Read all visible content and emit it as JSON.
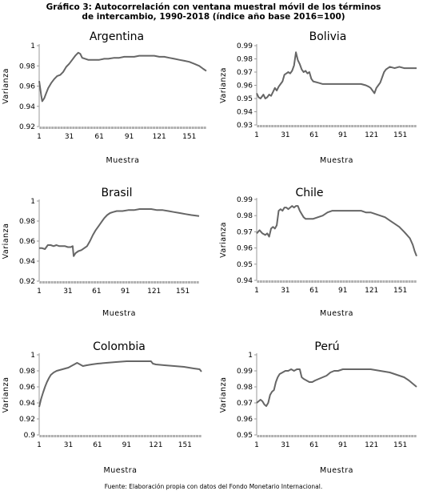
{
  "page": {
    "title_line1": "Gráfico 3: Autocorrelación con ventana muestral móvil de los términos",
    "title_line2": "de intercambio, 1990-2018 (índice año base 2016=100)",
    "source": "Fuente: Elaboración propia con datos del Fondo Monetario Internacional."
  },
  "colors": {
    "line": "#666666",
    "axis": "#999999",
    "text": "#000000"
  },
  "chart_data": [
    {
      "type": "line",
      "title": "Argentina",
      "xlabel": "Muestra",
      "ylabel": "Varianza",
      "ylim": [
        0.92,
        1.0
      ],
      "yticks": [
        "0.92",
        "0.94",
        "0.96",
        "0.98",
        "1"
      ],
      "xticks": [
        "1",
        "31",
        "61",
        "91",
        "121",
        "151"
      ],
      "x": [
        1,
        3,
        4,
        6,
        8,
        10,
        13,
        16,
        19,
        22,
        25,
        28,
        31,
        34,
        37,
        40,
        42,
        44,
        47,
        50,
        55,
        61,
        66,
        70,
        76,
        81,
        86,
        91,
        96,
        101,
        106,
        111,
        116,
        121,
        126,
        131,
        136,
        141,
        146,
        151,
        156,
        161,
        165,
        168
      ],
      "series": [
        {
          "values": [
            0.965,
            0.951,
            0.945,
            0.948,
            0.953,
            0.958,
            0.963,
            0.967,
            0.97,
            0.971,
            0.974,
            0.979,
            0.982,
            0.986,
            0.99,
            0.993,
            0.992,
            0.988,
            0.987,
            0.986,
            0.986,
            0.986,
            0.987,
            0.987,
            0.988,
            0.988,
            0.989,
            0.989,
            0.989,
            0.99,
            0.99,
            0.99,
            0.99,
            0.989,
            0.989,
            0.988,
            0.987,
            0.986,
            0.985,
            0.984,
            0.982,
            0.98,
            0.977,
            0.975
          ]
        }
      ]
    },
    {
      "type": "line",
      "title": "Bolivia",
      "xlabel": "Muestra",
      "ylabel": "Varianza",
      "ylim": [
        0.93,
        0.99
      ],
      "yticks": [
        "0.93",
        "0.94",
        "0.95",
        "0.96",
        "0.97",
        "0.98",
        "0.99"
      ],
      "xticks": [
        "1",
        "31",
        "61",
        "91",
        "121",
        "151"
      ],
      "x": [
        1,
        3,
        5,
        8,
        10,
        12,
        14,
        16,
        18,
        20,
        22,
        24,
        26,
        28,
        30,
        32,
        34,
        36,
        38,
        40,
        42,
        44,
        46,
        48,
        50,
        52,
        54,
        56,
        58,
        60,
        65,
        70,
        80,
        90,
        100,
        110,
        115,
        118,
        120,
        122,
        124,
        126,
        128,
        130,
        132,
        134,
        136,
        140,
        145,
        150,
        155,
        160,
        168
      ],
      "series": [
        {
          "values": [
            0.954,
            0.951,
            0.95,
            0.953,
            0.95,
            0.951,
            0.953,
            0.952,
            0.955,
            0.958,
            0.956,
            0.959,
            0.961,
            0.963,
            0.968,
            0.969,
            0.97,
            0.969,
            0.971,
            0.975,
            0.985,
            0.979,
            0.976,
            0.972,
            0.97,
            0.971,
            0.969,
            0.97,
            0.965,
            0.963,
            0.962,
            0.961,
            0.961,
            0.961,
            0.961,
            0.961,
            0.96,
            0.959,
            0.958,
            0.956,
            0.954,
            0.958,
            0.96,
            0.962,
            0.966,
            0.97,
            0.972,
            0.974,
            0.973,
            0.974,
            0.973,
            0.973,
            0.973
          ]
        }
      ]
    },
    {
      "type": "line",
      "title": "Brasil",
      "xlabel": "Muestra",
      "ylabel": "Varianza",
      "ylim": [
        0.92,
        1.0
      ],
      "yticks": [
        "0.92",
        "0.94",
        "0.96",
        "0.98",
        "1"
      ],
      "xticks": [
        "1",
        "31",
        "61",
        "91",
        "121",
        "151"
      ],
      "x": [
        1,
        4,
        7,
        10,
        13,
        16,
        19,
        22,
        25,
        28,
        31,
        34,
        36,
        37,
        39,
        42,
        45,
        48,
        51,
        54,
        57,
        60,
        63,
        66,
        69,
        72,
        75,
        78,
        82,
        88,
        94,
        100,
        106,
        112,
        118,
        124,
        130,
        136,
        142,
        148,
        154,
        160,
        168
      ],
      "series": [
        {
          "values": [
            0.953,
            0.953,
            0.952,
            0.956,
            0.956,
            0.955,
            0.956,
            0.955,
            0.955,
            0.955,
            0.954,
            0.954,
            0.955,
            0.945,
            0.948,
            0.95,
            0.951,
            0.953,
            0.955,
            0.96,
            0.966,
            0.971,
            0.975,
            0.979,
            0.983,
            0.986,
            0.988,
            0.989,
            0.99,
            0.99,
            0.991,
            0.991,
            0.992,
            0.992,
            0.992,
            0.991,
            0.991,
            0.99,
            0.989,
            0.988,
            0.987,
            0.986,
            0.985
          ]
        }
      ]
    },
    {
      "type": "line",
      "title": "Chile",
      "xlabel": "Muestra",
      "ylabel": "Varianza",
      "ylim": [
        0.94,
        0.99
      ],
      "yticks": [
        "0.94",
        "0.95",
        "0.96",
        "0.97",
        "0.98",
        "0.99"
      ],
      "xticks": [
        "1",
        "31",
        "61",
        "91",
        "121",
        "151"
      ],
      "x": [
        1,
        4,
        7,
        10,
        12,
        14,
        16,
        18,
        20,
        22,
        24,
        26,
        28,
        30,
        32,
        34,
        36,
        38,
        40,
        42,
        44,
        46,
        48,
        50,
        52,
        55,
        60,
        65,
        70,
        75,
        80,
        90,
        100,
        110,
        115,
        120,
        125,
        130,
        135,
        140,
        145,
        150,
        155,
        158,
        161,
        164,
        166,
        168
      ],
      "series": [
        {
          "values": [
            0.969,
            0.971,
            0.969,
            0.968,
            0.969,
            0.967,
            0.972,
            0.973,
            0.972,
            0.974,
            0.983,
            0.984,
            0.983,
            0.985,
            0.985,
            0.984,
            0.985,
            0.986,
            0.985,
            0.986,
            0.986,
            0.983,
            0.981,
            0.979,
            0.978,
            0.978,
            0.978,
            0.979,
            0.98,
            0.982,
            0.983,
            0.983,
            0.983,
            0.983,
            0.982,
            0.982,
            0.981,
            0.98,
            0.979,
            0.977,
            0.975,
            0.973,
            0.97,
            0.968,
            0.966,
            0.962,
            0.958,
            0.955
          ]
        }
      ]
    },
    {
      "type": "line",
      "title": "Colombia",
      "xlabel": "Muestra",
      "ylabel": "Varianza",
      "ylim": [
        0.9,
        1.0
      ],
      "yticks": [
        "0.9",
        "0.92",
        "0.94",
        "0.96",
        "0.98",
        "1"
      ],
      "xticks": [
        "1",
        "31",
        "61",
        "91",
        "121",
        "151"
      ],
      "x": [
        1,
        3,
        5,
        7,
        9,
        11,
        13,
        16,
        19,
        22,
        25,
        28,
        31,
        34,
        37,
        40,
        43,
        46,
        50,
        55,
        61,
        70,
        80,
        91,
        100,
        110,
        116,
        118,
        121,
        130,
        140,
        150,
        160,
        166,
        168
      ],
      "series": [
        {
          "values": [
            0.935,
            0.945,
            0.953,
            0.96,
            0.966,
            0.971,
            0.975,
            0.978,
            0.98,
            0.981,
            0.982,
            0.983,
            0.984,
            0.986,
            0.988,
            0.99,
            0.988,
            0.986,
            0.987,
            0.988,
            0.989,
            0.99,
            0.991,
            0.992,
            0.992,
            0.992,
            0.992,
            0.989,
            0.988,
            0.987,
            0.986,
            0.985,
            0.983,
            0.982,
            0.979
          ]
        }
      ]
    },
    {
      "type": "line",
      "title": "Perú",
      "xlabel": "Muestra",
      "ylabel": "Varianza",
      "ylim": [
        0.95,
        1.0
      ],
      "yticks": [
        "0.95",
        "0.96",
        "0.97",
        "0.98",
        "0.99",
        "1"
      ],
      "xticks": [
        "1",
        "31",
        "61",
        "91",
        "121",
        "151"
      ],
      "x": [
        1,
        3,
        5,
        7,
        9,
        11,
        13,
        15,
        17,
        19,
        21,
        23,
        25,
        28,
        31,
        34,
        37,
        40,
        43,
        46,
        48,
        50,
        53,
        56,
        59,
        62,
        66,
        70,
        74,
        78,
        82,
        86,
        91,
        100,
        110,
        120,
        130,
        140,
        150,
        155,
        160,
        164,
        168
      ],
      "series": [
        {
          "values": [
            0.97,
            0.971,
            0.972,
            0.971,
            0.969,
            0.968,
            0.97,
            0.975,
            0.977,
            0.978,
            0.983,
            0.986,
            0.988,
            0.989,
            0.99,
            0.99,
            0.991,
            0.99,
            0.991,
            0.991,
            0.986,
            0.985,
            0.984,
            0.983,
            0.983,
            0.984,
            0.985,
            0.986,
            0.987,
            0.989,
            0.99,
            0.99,
            0.991,
            0.991,
            0.991,
            0.991,
            0.99,
            0.989,
            0.987,
            0.986,
            0.984,
            0.982,
            0.98
          ]
        }
      ]
    }
  ]
}
